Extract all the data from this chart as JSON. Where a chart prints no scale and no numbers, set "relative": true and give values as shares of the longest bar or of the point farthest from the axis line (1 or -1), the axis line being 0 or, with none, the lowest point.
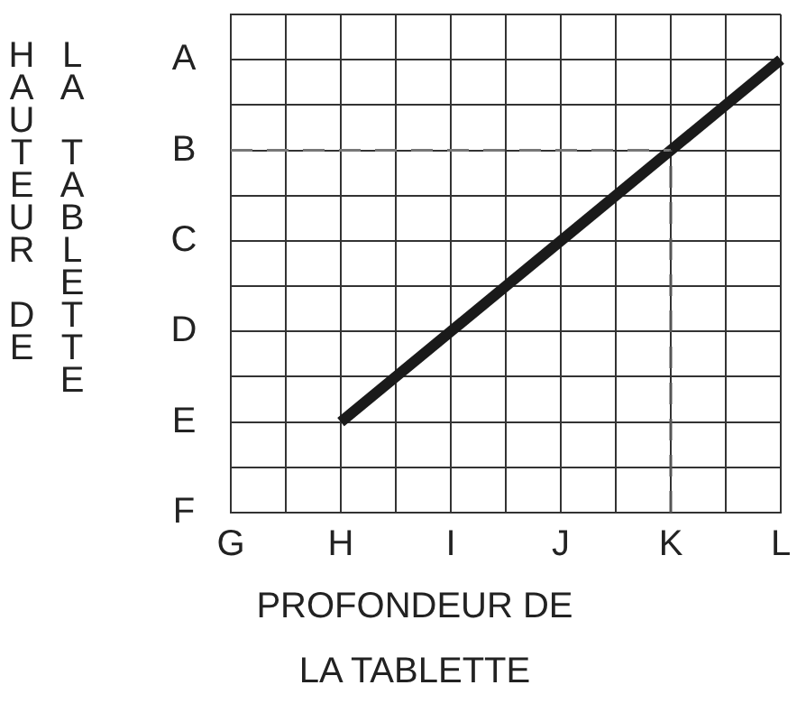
{
  "chart_data": {
    "type": "line",
    "relative": true,
    "xlabel": "PROFONDEUR DE LA TABLETTE",
    "ylabel": "HAUTEUR DE LA TABLETTE",
    "categories": [
      "G",
      null,
      "H",
      null,
      "I",
      null,
      "J",
      null,
      "K",
      null,
      "L"
    ],
    "annotations": [
      "A",
      "B",
      "C",
      "D",
      "E",
      "F"
    ],
    "grid": true,
    "legend": false,
    "marker": "none",
    "line_style": "solid",
    "series": [
      {
        "color": "#1a1a1a",
        "values": [
          null,
          null,
          0.2,
          null,
          null,
          null,
          null,
          null,
          null,
          null,
          1
        ]
      }
    ],
    "ref_lines": [
      {
        "axis": "y",
        "value": 0.8,
        "color": "#777777",
        "line_style": "dashed"
      },
      {
        "axis": "x",
        "value": "K",
        "color": "#555555",
        "line_style": "dashed"
      }
    ]
  }
}
